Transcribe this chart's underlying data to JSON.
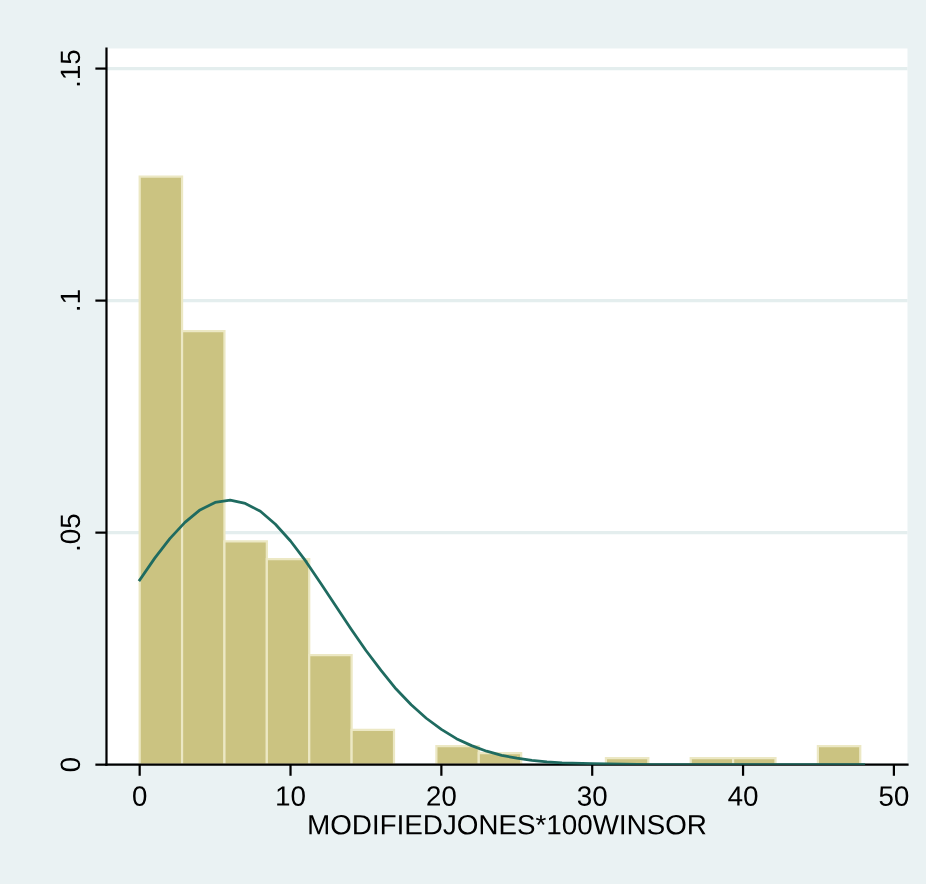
{
  "chart_data": {
    "type": "histogram",
    "xlabel": "MODIFIEDJONES*100WINSOR",
    "bins": [
      0,
      2.81,
      5.62,
      8.43,
      11.24,
      14.05,
      16.86,
      19.67,
      22.48,
      25.29,
      28.1,
      30.91,
      33.72,
      36.53,
      39.34,
      42.15,
      44.96,
      47.77
    ],
    "values": [
      0.1267,
      0.0934,
      0.0481,
      0.0443,
      0.0236,
      0.0075,
      0,
      0.004,
      0.0025,
      0,
      0,
      0.0014,
      0,
      0.0014,
      0.0014,
      0,
      0.004
    ],
    "color": "#cbc381",
    "series": [
      {
        "type": "line",
        "color": "#1f6b60",
        "x": [
          0,
          1,
          2,
          3,
          4,
          5,
          6,
          7,
          8,
          9,
          10,
          11,
          12,
          13,
          14,
          15,
          16,
          17,
          18,
          19,
          20,
          21,
          22,
          23,
          24,
          25,
          26,
          27,
          28,
          30,
          32,
          34,
          40,
          48
        ],
        "values": [
          0.0398,
          0.0445,
          0.0487,
          0.0522,
          0.0549,
          0.0565,
          0.057,
          0.0563,
          0.0546,
          0.0518,
          0.0482,
          0.0439,
          0.0391,
          0.0342,
          0.0293,
          0.0246,
          0.0203,
          0.0163,
          0.0129,
          0.01,
          0.0076,
          0.0056,
          0.0041,
          0.0029,
          0.002,
          0.0014,
          0.0009,
          0.0006,
          0.0004,
          0.0002,
          0.0001,
          0,
          0,
          0
        ]
      }
    ],
    "xlim": [
      -2.2,
      50.9
    ],
    "xticks": [
      0,
      10,
      20,
      30,
      40,
      50
    ],
    "ylim": [
      0,
      0.1543
    ],
    "yticks": [
      0,
      {
        "value": 0.05,
        "label": ".05"
      },
      {
        "value": 0.1,
        "label": ".1"
      },
      {
        "value": 0.15,
        "label": ".15"
      }
    ],
    "grid": "y"
  }
}
